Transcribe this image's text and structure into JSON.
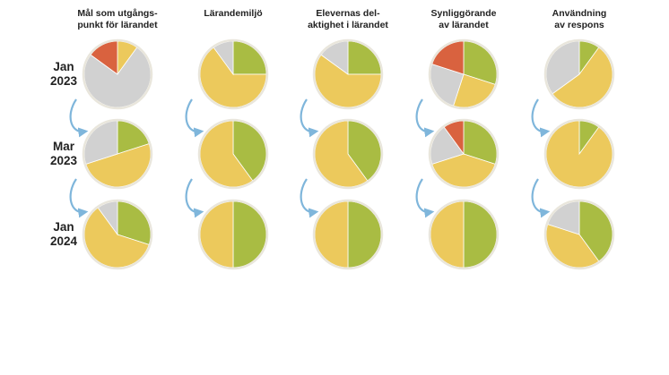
{
  "colors": {
    "green": "#a9bc43",
    "yellow": "#ecc95c",
    "gray": "#d1d1d1",
    "red": "#d9623f",
    "outline": "#e9e6dc",
    "arrow": "#7fb6db"
  },
  "chart_data": {
    "type": "pie",
    "title": "",
    "rows": [
      {
        "label": [
          "Jan",
          "2023"
        ]
      },
      {
        "label": [
          "Mar",
          "2023"
        ]
      },
      {
        "label": [
          "Jan",
          "2024"
        ]
      }
    ],
    "columns": [
      {
        "title": [
          "Mål som utgångs-",
          "punkt för lärandet"
        ],
        "pies": [
          [
            {
              "category": "yellow",
              "value": 10
            },
            {
              "category": "gray",
              "value": 75
            },
            {
              "category": "red",
              "value": 15
            }
          ],
          [
            {
              "category": "green",
              "value": 20
            },
            {
              "category": "yellow",
              "value": 50
            },
            {
              "category": "gray",
              "value": 30
            }
          ],
          [
            {
              "category": "green",
              "value": 30
            },
            {
              "category": "yellow",
              "value": 60
            },
            {
              "category": "gray",
              "value": 10
            }
          ]
        ]
      },
      {
        "title": [
          "Lärandemiljö"
        ],
        "pies": [
          [
            {
              "category": "green",
              "value": 25
            },
            {
              "category": "yellow",
              "value": 65
            },
            {
              "category": "gray",
              "value": 10
            }
          ],
          [
            {
              "category": "green",
              "value": 40
            },
            {
              "category": "yellow",
              "value": 60
            }
          ],
          [
            {
              "category": "green",
              "value": 50
            },
            {
              "category": "yellow",
              "value": 50
            }
          ]
        ]
      },
      {
        "title": [
          "Elevernas del-",
          "aktighet i lärandet"
        ],
        "pies": [
          [
            {
              "category": "green",
              "value": 25
            },
            {
              "category": "yellow",
              "value": 60
            },
            {
              "category": "gray",
              "value": 15
            }
          ],
          [
            {
              "category": "green",
              "value": 40
            },
            {
              "category": "yellow",
              "value": 60
            }
          ],
          [
            {
              "category": "green",
              "value": 50
            },
            {
              "category": "yellow",
              "value": 50
            }
          ]
        ]
      },
      {
        "title": [
          "Synliggörande",
          "av lärandet"
        ],
        "pies": [
          [
            {
              "category": "green",
              "value": 30
            },
            {
              "category": "yellow",
              "value": 25
            },
            {
              "category": "gray",
              "value": 25
            },
            {
              "category": "red",
              "value": 20
            }
          ],
          [
            {
              "category": "green",
              "value": 30
            },
            {
              "category": "yellow",
              "value": 40
            },
            {
              "category": "gray",
              "value": 20
            },
            {
              "category": "red",
              "value": 10
            }
          ],
          [
            {
              "category": "green",
              "value": 50
            },
            {
              "category": "yellow",
              "value": 50
            }
          ]
        ]
      },
      {
        "title": [
          "Användning",
          "av respons"
        ],
        "pies": [
          [
            {
              "category": "green",
              "value": 10
            },
            {
              "category": "yellow",
              "value": 55
            },
            {
              "category": "gray",
              "value": 35
            }
          ],
          [
            {
              "category": "green",
              "value": 10
            },
            {
              "category": "yellow",
              "value": 90
            }
          ],
          [
            {
              "category": "green",
              "value": 40
            },
            {
              "category": "yellow",
              "value": 40
            },
            {
              "category": "gray",
              "value": 20
            }
          ]
        ]
      }
    ]
  }
}
